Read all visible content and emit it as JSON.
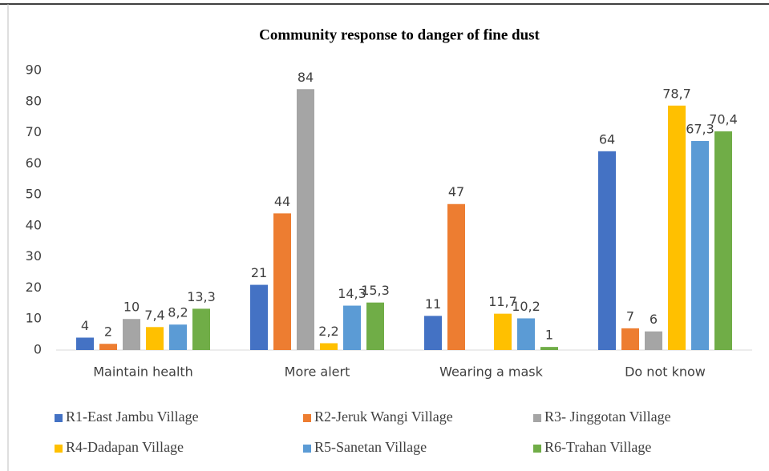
{
  "chart_data": {
    "type": "bar",
    "title": "Community response to danger of fine dust",
    "categories": [
      "Maintain health",
      "More alert",
      "Wearing a mask",
      "Do not know"
    ],
    "series": [
      {
        "name": "R1-East Jambu Village",
        "color": "#4472c4",
        "values": [
          4,
          21,
          11,
          64
        ],
        "value_labels": [
          "4",
          "21",
          "11",
          "64"
        ]
      },
      {
        "name": "R2-Jeruk Wangi Village",
        "color": "#ed7d31",
        "values": [
          2,
          44,
          47,
          7
        ],
        "value_labels": [
          "2",
          "44",
          "47",
          "7"
        ]
      },
      {
        "name": "R3- Jinggotan Village",
        "color": "#a5a5a5",
        "values": [
          10,
          84,
          null,
          6
        ],
        "value_labels": [
          "10",
          "84",
          null,
          "6"
        ]
      },
      {
        "name": "R4-Dadapan Village",
        "color": "#ffc000",
        "values": [
          7.4,
          2.2,
          11.7,
          78.7
        ],
        "value_labels": [
          "7,4",
          "2,2",
          "11,7",
          "78,7"
        ]
      },
      {
        "name": "R5-Sanetan Village",
        "color": "#5b9bd5",
        "values": [
          8.2,
          14.3,
          10.2,
          67.3
        ],
        "value_labels": [
          "8,2",
          "14,3",
          "10,2",
          "67,3"
        ]
      },
      {
        "name": "R6-Trahan Village",
        "color": "#70ad47",
        "values": [
          13.3,
          15.3,
          1,
          70.4
        ],
        "value_labels": [
          "13,3",
          "15,3",
          "1",
          "70,4"
        ]
      }
    ],
    "ylim": [
      0,
      90
    ],
    "yticks": [
      0,
      10,
      20,
      30,
      40,
      50,
      60,
      70,
      80,
      90
    ],
    "grid": false,
    "legend": "bottom"
  }
}
